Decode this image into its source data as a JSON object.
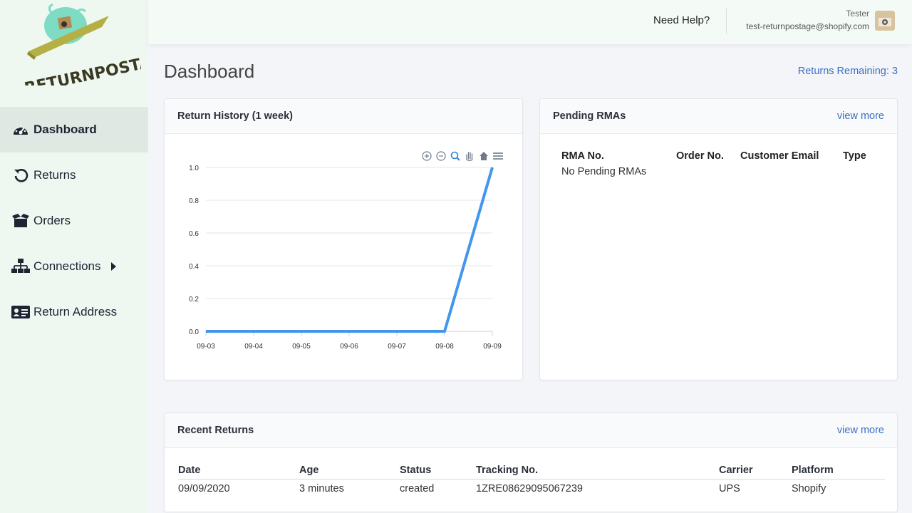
{
  "app": {
    "logo_text": "RETURNPOSTAGE"
  },
  "sidebar": {
    "items": [
      {
        "label": "Dashboard",
        "icon": "speedometer-icon",
        "active": true
      },
      {
        "label": "Returns",
        "icon": "undo-icon"
      },
      {
        "label": "Orders",
        "icon": "box-icon"
      },
      {
        "label": "Connections",
        "icon": "network-icon",
        "has_submenu": true
      },
      {
        "label": "Return Address",
        "icon": "address-card-icon"
      }
    ]
  },
  "header": {
    "help_label": "Need Help?",
    "user_name": "Tester",
    "user_email": "test-returnpostage@shopify.com"
  },
  "page": {
    "title": "Dashboard",
    "returns_remaining": "Returns Remaining: 3"
  },
  "history": {
    "title": "Return History (1 week)",
    "toolbar": [
      "zoom-in-icon",
      "zoom-out-icon",
      "zoom-select-icon",
      "pan-hand-icon",
      "home-icon",
      "menu-icon"
    ]
  },
  "chart_data": {
    "type": "line",
    "title": "",
    "xlabel": "",
    "ylabel": "",
    "x": [
      "09-03",
      "09-04",
      "09-05",
      "09-06",
      "09-07",
      "09-08",
      "09-09"
    ],
    "series": [
      {
        "values": [
          0,
          0,
          0,
          0,
          0,
          0,
          1
        ]
      }
    ],
    "ylim": [
      0,
      1
    ],
    "yticks": [
      "0.0",
      "0.2",
      "0.4",
      "0.6",
      "0.8",
      "1.0"
    ],
    "grid": true,
    "color": "#4296eb"
  },
  "pending": {
    "title": "Pending RMAs",
    "view_more": "view more",
    "columns": [
      "RMA No.",
      "Order No.",
      "Customer Email",
      "Type"
    ],
    "empty_text": "No Pending RMAs"
  },
  "recent": {
    "title": "Recent Returns",
    "view_more": "view more",
    "columns": [
      "Date",
      "Age",
      "Status",
      "Tracking No.",
      "Carrier",
      "Platform"
    ],
    "rows": [
      [
        "09/09/2020",
        "3 minutes",
        "created",
        "1ZRE08629095067239",
        "UPS",
        "Shopify"
      ]
    ]
  },
  "colors": {
    "accent": "#3b6fc4",
    "sidebar_bg": "#eef8f1",
    "chart_line": "#4296eb"
  }
}
